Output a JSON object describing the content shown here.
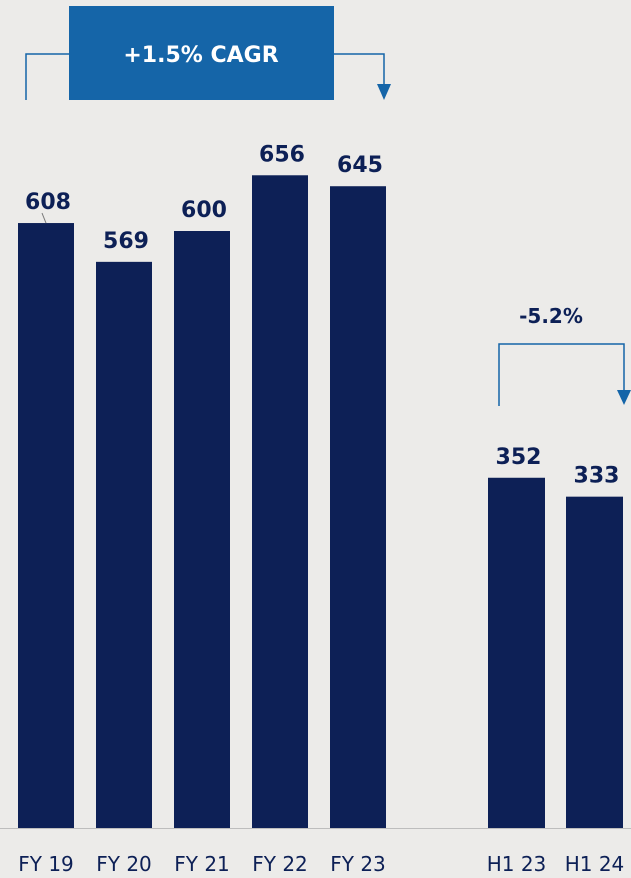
{
  "colors": {
    "bar": "#0d2056",
    "bracket": "#1565a8",
    "badge": "#1565a8",
    "badge_text": "#ffffff",
    "value_text": "#0d2056",
    "tick_text": "#0d2056",
    "axis": "#bdbdbd",
    "background": "#ecebe9"
  },
  "chart_data": [
    {
      "type": "bar",
      "categories": [
        "FY 19",
        "FY 20",
        "FY 21",
        "FY 22",
        "FY 23"
      ],
      "values": [
        608,
        569,
        600,
        656,
        645
      ],
      "value_labels": [
        "608",
        "569",
        "600",
        "656",
        "645"
      ],
      "annotation": {
        "text": "+1.5% CAGR",
        "from": "FY 19",
        "to": "FY 23"
      },
      "ylim": [
        0,
        700
      ],
      "grid": false,
      "legend": "none"
    },
    {
      "type": "bar",
      "categories": [
        "H1 23",
        "H1 24"
      ],
      "values": [
        352,
        333
      ],
      "value_labels": [
        "352",
        "333"
      ],
      "annotation": {
        "text": "-5.2%",
        "from": "H1 23",
        "to": "H1 24"
      },
      "ylim": [
        0,
        700
      ],
      "grid": false,
      "legend": "none"
    }
  ]
}
